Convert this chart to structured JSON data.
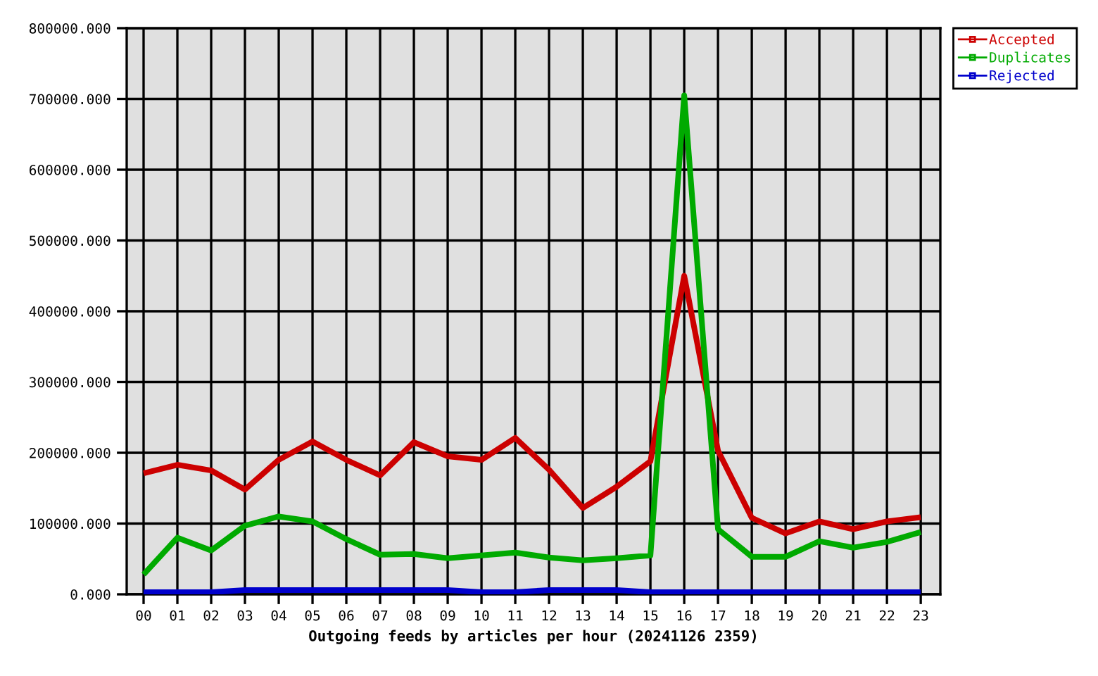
{
  "chart_data": {
    "type": "line",
    "xlabel": "Outgoing feeds by articles per hour (20241126 2359)",
    "categories": [
      "00",
      "01",
      "02",
      "03",
      "04",
      "05",
      "06",
      "07",
      "08",
      "09",
      "10",
      "11",
      "12",
      "13",
      "14",
      "15",
      "16",
      "17",
      "18",
      "19",
      "20",
      "21",
      "22",
      "23"
    ],
    "series": [
      {
        "name": "Accepted",
        "color": "#cc0000",
        "values": [
          171000,
          183000,
          175000,
          148000,
          190000,
          216000,
          190000,
          168000,
          215000,
          195000,
          190000,
          221000,
          176000,
          122000,
          152000,
          188000,
          450000,
          203000,
          108000,
          86000,
          103000,
          92000,
          103000,
          109000
        ]
      },
      {
        "name": "Duplicates",
        "color": "#00aa00",
        "values": [
          28000,
          80000,
          62000,
          97000,
          110000,
          103000,
          78000,
          56000,
          57000,
          51000,
          55000,
          59000,
          52000,
          48000,
          51000,
          55000,
          705000,
          92000,
          53000,
          53000,
          75000,
          66000,
          74000,
          88000
        ]
      },
      {
        "name": "Rejected",
        "color": "#0000cc",
        "values": [
          3000,
          3000,
          3000,
          6000,
          6000,
          6000,
          6000,
          6000,
          6000,
          6000,
          3000,
          3000,
          6000,
          6000,
          6000,
          3000,
          3000,
          3000,
          3000,
          3000,
          3000,
          3000,
          3000,
          3000
        ]
      }
    ],
    "ylim": [
      0,
      800000
    ],
    "yticks": [
      {
        "value": 0,
        "label": "0.000"
      },
      {
        "value": 100000,
        "label": "100000.000"
      },
      {
        "value": 200000,
        "label": "200000.000"
      },
      {
        "value": 300000,
        "label": "300000.000"
      },
      {
        "value": 400000,
        "label": "400000.000"
      },
      {
        "value": 500000,
        "label": "500000.000"
      },
      {
        "value": 600000,
        "label": "600000.000"
      },
      {
        "value": 700000,
        "label": "700000.000"
      },
      {
        "value": 800000,
        "label": "800000.000"
      }
    ],
    "grid": true,
    "legend": "top right",
    "line_style": "solid"
  }
}
